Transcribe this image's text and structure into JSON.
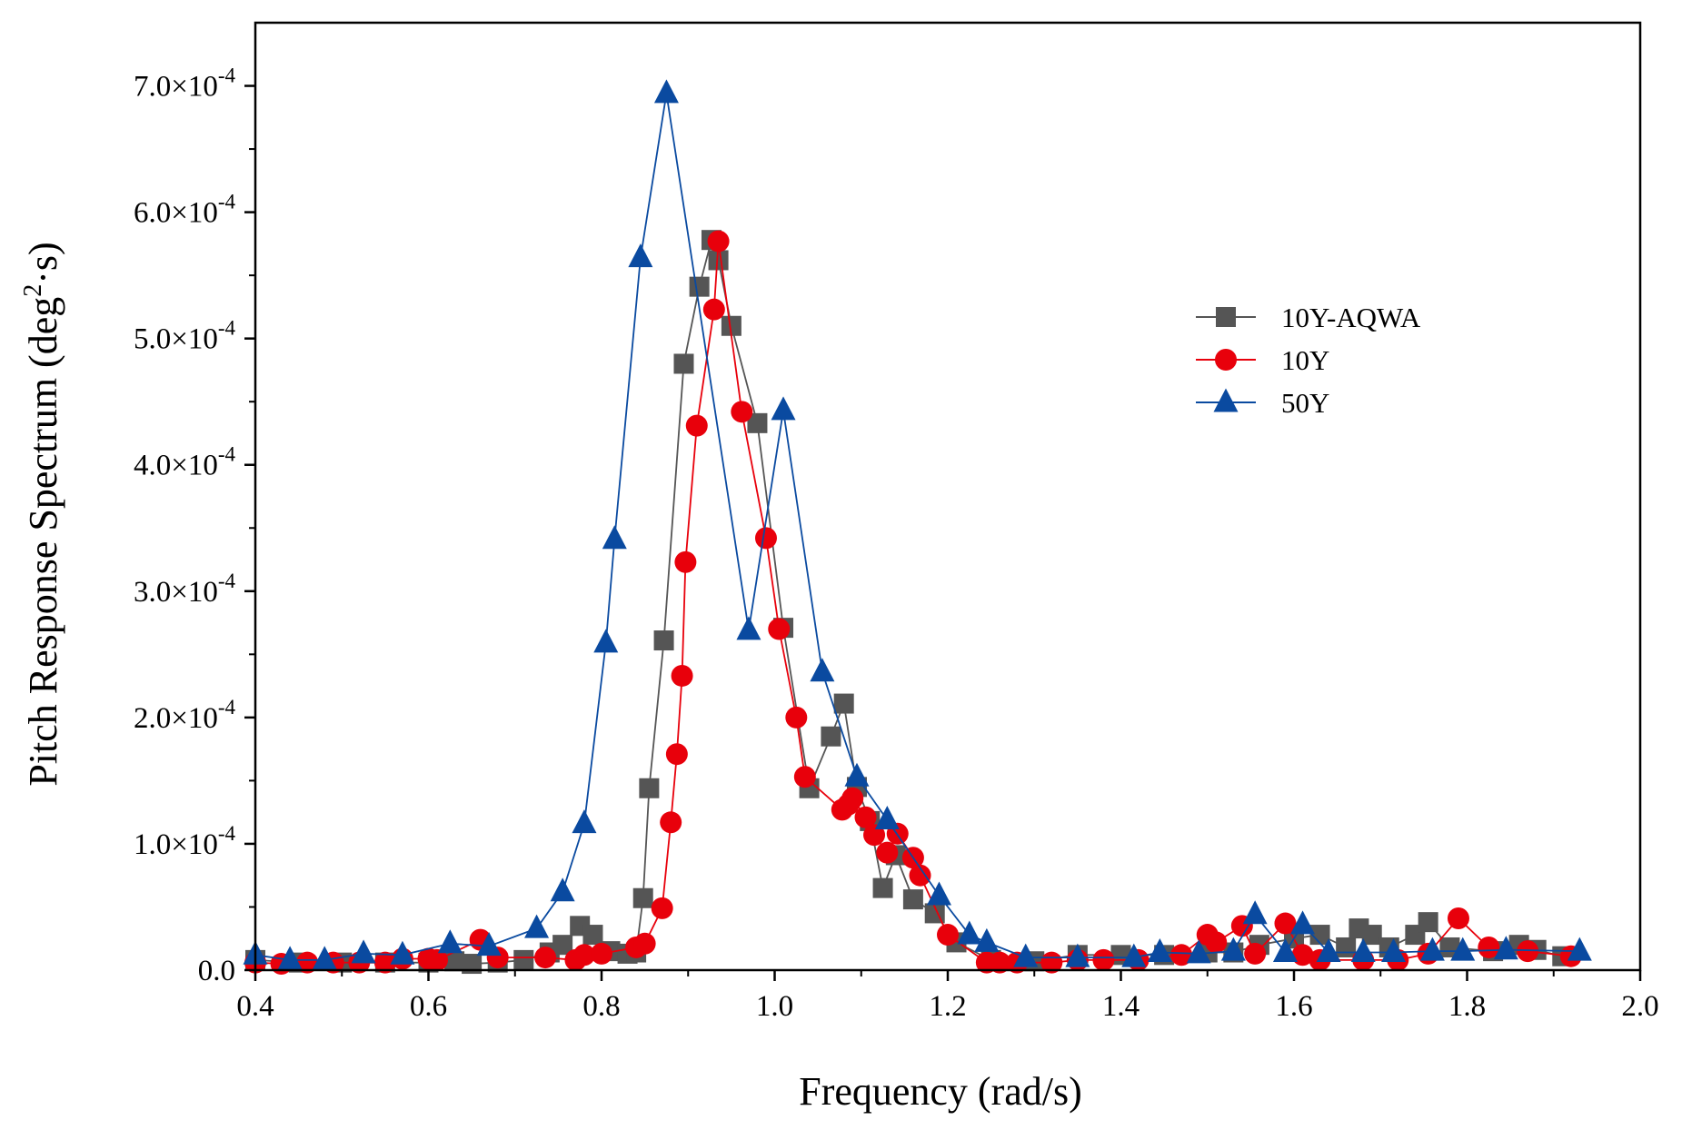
{
  "chart_data": {
    "type": "line",
    "title": "",
    "xlabel": "Frequency (rad/s)",
    "ylabel_prefix": "Pitch Response Spectrum (deg",
    "ylabel_sup": "2",
    "ylabel_suffix": "·s)",
    "xlim": [
      0.4,
      2.0
    ],
    "ylim": [
      0,
      0.00075
    ],
    "x_ticks": [
      0.4,
      0.6,
      0.8,
      1.0,
      1.2,
      1.4,
      1.6,
      1.8,
      2.0
    ],
    "x_tick_labels": [
      "0.4",
      "0.6",
      "0.8",
      "1.0",
      "1.2",
      "1.4",
      "1.6",
      "1.8",
      "2.0"
    ],
    "y_ticks": [
      0,
      0.0001,
      0.0002,
      0.0003,
      0.0004,
      0.0005,
      0.0006,
      0.0007
    ],
    "y_tick_labels": [
      {
        "mant": "0.0",
        "exp": ""
      },
      {
        "mant": "1.0×10",
        "exp": "-4"
      },
      {
        "mant": "2.0×10",
        "exp": "-4"
      },
      {
        "mant": "3.0×10",
        "exp": "-4"
      },
      {
        "mant": "4.0×10",
        "exp": "-4"
      },
      {
        "mant": "5.0×10",
        "exp": "-4"
      },
      {
        "mant": "6.0×10",
        "exp": "-4"
      },
      {
        "mant": "7.0×10",
        "exp": "-4"
      }
    ],
    "grid": false,
    "legend_position": "right-center",
    "series": [
      {
        "name": "10Y-AQWA",
        "color": "#555555",
        "marker": "square",
        "points": [
          [
            0.4,
            8e-06
          ],
          [
            0.45,
            6e-06
          ],
          [
            0.5,
            6e-06
          ],
          [
            0.55,
            6e-06
          ],
          [
            0.6,
            6e-06
          ],
          [
            0.63,
            7e-06
          ],
          [
            0.65,
            5e-06
          ],
          [
            0.68,
            6e-06
          ],
          [
            0.71,
            8e-06
          ],
          [
            0.74,
            1.4e-05
          ],
          [
            0.755,
            2e-05
          ],
          [
            0.775,
            3.5e-05
          ],
          [
            0.79,
            2.8e-05
          ],
          [
            0.81,
            1.5e-05
          ],
          [
            0.83,
            1.3e-05
          ],
          [
            0.84,
            1.4e-05
          ],
          [
            0.848,
            5.7e-05
          ],
          [
            0.855,
            0.000144
          ],
          [
            0.872,
            0.000261
          ],
          [
            0.895,
            0.00048
          ],
          [
            0.913,
            0.000541
          ],
          [
            0.927,
            0.000578
          ],
          [
            0.935,
            0.000562
          ],
          [
            0.95,
            0.00051
          ],
          [
            0.98,
            0.000433
          ],
          [
            1.01,
            0.000271
          ],
          [
            1.04,
            0.000144
          ],
          [
            1.065,
            0.000185
          ],
          [
            1.08,
            0.000211
          ],
          [
            1.095,
            0.000145
          ],
          [
            1.11,
            0.000118
          ],
          [
            1.125,
            6.5e-05
          ],
          [
            1.14,
            9.1e-05
          ],
          [
            1.16,
            5.6e-05
          ],
          [
            1.185,
            4.5e-05
          ],
          [
            1.21,
            2.2e-05
          ],
          [
            1.25,
            8e-06
          ],
          [
            1.3,
            7e-06
          ],
          [
            1.35,
            1.2e-05
          ],
          [
            1.4,
            1.2e-05
          ],
          [
            1.45,
            1.2e-05
          ],
          [
            1.5,
            1.4e-05
          ],
          [
            1.53,
            1.4e-05
          ],
          [
            1.56,
            2e-05
          ],
          [
            1.6,
            2.5e-05
          ],
          [
            1.63,
            2.8e-05
          ],
          [
            1.66,
            1.8e-05
          ],
          [
            1.675,
            3.3e-05
          ],
          [
            1.69,
            2.8e-05
          ],
          [
            1.71,
            1.8e-05
          ],
          [
            1.74,
            2.8e-05
          ],
          [
            1.755,
            3.8e-05
          ],
          [
            1.78,
            1.8e-05
          ],
          [
            1.83,
            1.5e-05
          ],
          [
            1.86,
            2e-05
          ],
          [
            1.88,
            1.6e-05
          ],
          [
            1.91,
            1.1e-05
          ]
        ]
      },
      {
        "name": "10Y",
        "color": "#e8000b",
        "marker": "circle",
        "points": [
          [
            0.4,
            6e-06
          ],
          [
            0.43,
            5e-06
          ],
          [
            0.46,
            6e-06
          ],
          [
            0.49,
            6e-06
          ],
          [
            0.52,
            6e-06
          ],
          [
            0.55,
            6e-06
          ],
          [
            0.57,
            9e-06
          ],
          [
            0.6,
            9e-06
          ],
          [
            0.61,
            8e-06
          ],
          [
            0.66,
            2.4e-05
          ],
          [
            0.68,
            1e-05
          ],
          [
            0.735,
            1e-05
          ],
          [
            0.77,
            8e-06
          ],
          [
            0.78,
            1.2e-05
          ],
          [
            0.8,
            1.3e-05
          ],
          [
            0.84,
            1.8e-05
          ],
          [
            0.85,
            2.1e-05
          ],
          [
            0.87,
            4.9e-05
          ],
          [
            0.88,
            0.000117
          ],
          [
            0.887,
            0.000171
          ],
          [
            0.893,
            0.000233
          ],
          [
            0.897,
            0.000323
          ],
          [
            0.91,
            0.000431
          ],
          [
            0.93,
            0.000523
          ],
          [
            0.935,
            0.000577
          ],
          [
            0.962,
            0.000442
          ],
          [
            0.99,
            0.000342
          ],
          [
            1.005,
            0.00027
          ],
          [
            1.025,
            0.0002
          ],
          [
            1.035,
            0.000153
          ],
          [
            1.078,
            0.000127
          ],
          [
            1.085,
            0.000131
          ],
          [
            1.09,
            0.000136
          ],
          [
            1.105,
            0.000121
          ],
          [
            1.115,
            0.000107
          ],
          [
            1.13,
            9.3e-05
          ],
          [
            1.142,
            0.000108
          ],
          [
            1.16,
            8.9e-05
          ],
          [
            1.168,
            7.5e-05
          ],
          [
            1.2,
            2.8e-05
          ],
          [
            1.245,
            6e-06
          ],
          [
            1.26,
            6e-06
          ],
          [
            1.28,
            6e-06
          ],
          [
            1.32,
            6e-06
          ],
          [
            1.35,
            8e-06
          ],
          [
            1.38,
            8e-06
          ],
          [
            1.42,
            8e-06
          ],
          [
            1.47,
            1.2e-05
          ],
          [
            1.5,
            2.8e-05
          ],
          [
            1.51,
            2.2e-05
          ],
          [
            1.54,
            3.5e-05
          ],
          [
            1.555,
            1.3e-05
          ],
          [
            1.59,
            3.7e-05
          ],
          [
            1.61,
            1.2e-05
          ],
          [
            1.63,
            8e-06
          ],
          [
            1.68,
            8e-06
          ],
          [
            1.72,
            8e-06
          ],
          [
            1.755,
            1.3e-05
          ],
          [
            1.79,
            4.1e-05
          ],
          [
            1.825,
            1.8e-05
          ],
          [
            1.87,
            1.5e-05
          ],
          [
            1.92,
            1.1e-05
          ]
        ]
      },
      {
        "name": "50Y",
        "color": "#0a4aa0",
        "marker": "triangle",
        "points": [
          [
            0.4,
            1.2e-05
          ],
          [
            0.44,
            8e-06
          ],
          [
            0.48,
            8e-06
          ],
          [
            0.525,
            1.3e-05
          ],
          [
            0.57,
            1.2e-05
          ],
          [
            0.625,
            2.1e-05
          ],
          [
            0.67,
            1.9e-05
          ],
          [
            0.725,
            3.3e-05
          ],
          [
            0.755,
            6.2e-05
          ],
          [
            0.78,
            0.000116
          ],
          [
            0.805,
            0.000259
          ],
          [
            0.815,
            0.000341
          ],
          [
            0.845,
            0.000564
          ],
          [
            0.875,
            0.000694
          ],
          [
            0.97,
            0.000269
          ],
          [
            1.01,
            0.000443
          ],
          [
            1.055,
            0.000236
          ],
          [
            1.095,
            0.000153
          ],
          [
            1.13,
            0.000119
          ],
          [
            1.19,
            5.9e-05
          ],
          [
            1.225,
            2.8e-05
          ],
          [
            1.245,
            2.2e-05
          ],
          [
            1.29,
            1e-05
          ],
          [
            1.35,
            1e-05
          ],
          [
            1.415,
            1e-05
          ],
          [
            1.445,
            1.4e-05
          ],
          [
            1.49,
            1.3e-05
          ],
          [
            1.53,
            1.5e-05
          ],
          [
            1.555,
            4.4e-05
          ],
          [
            1.59,
            1.4e-05
          ],
          [
            1.61,
            3.6e-05
          ],
          [
            1.64,
            1.4e-05
          ],
          [
            1.68,
            1.4e-05
          ],
          [
            1.715,
            1.4e-05
          ],
          [
            1.76,
            1.5e-05
          ],
          [
            1.795,
            1.5e-05
          ],
          [
            1.845,
            1.6e-05
          ],
          [
            1.93,
            1.5e-05
          ]
        ]
      }
    ]
  }
}
